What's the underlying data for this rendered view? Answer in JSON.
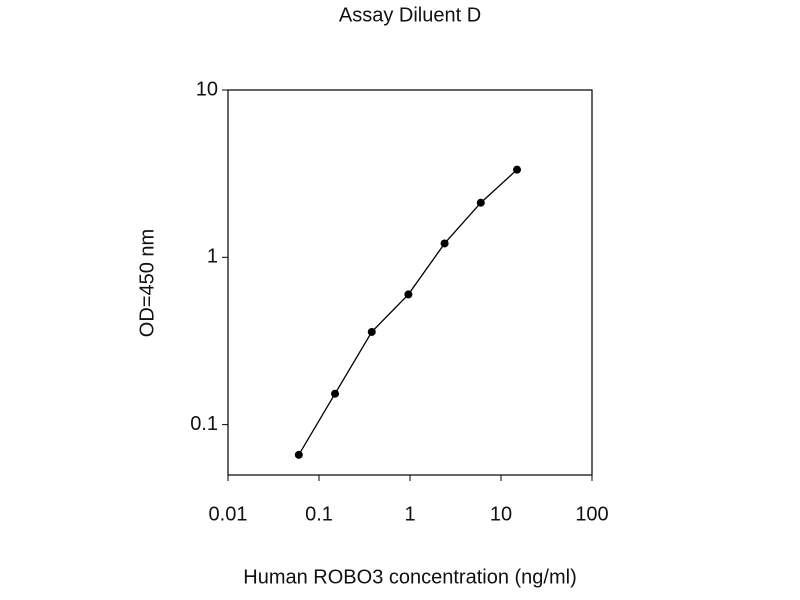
{
  "chart_data": {
    "type": "line",
    "title": "Assay Diluent D",
    "x_label": "Human ROBO3 concentration (ng/ml)",
    "y_label": "OD=450 nm",
    "x": [
      0.06,
      0.15,
      0.38,
      0.96,
      2.4,
      6,
      15
    ],
    "series": [
      {
        "color": "#000000",
        "values": [
          0.066,
          0.153,
          0.358,
          0.6,
          1.21,
          2.12,
          3.34
        ]
      }
    ],
    "xscale": "log",
    "yscale": "log",
    "xlim": [
      0.01,
      100
    ],
    "xticks": [
      0.01,
      0.1,
      1,
      10,
      100
    ],
    "ylim": [
      0.05,
      10
    ],
    "yticks": [
      0.1,
      1,
      10
    ]
  }
}
